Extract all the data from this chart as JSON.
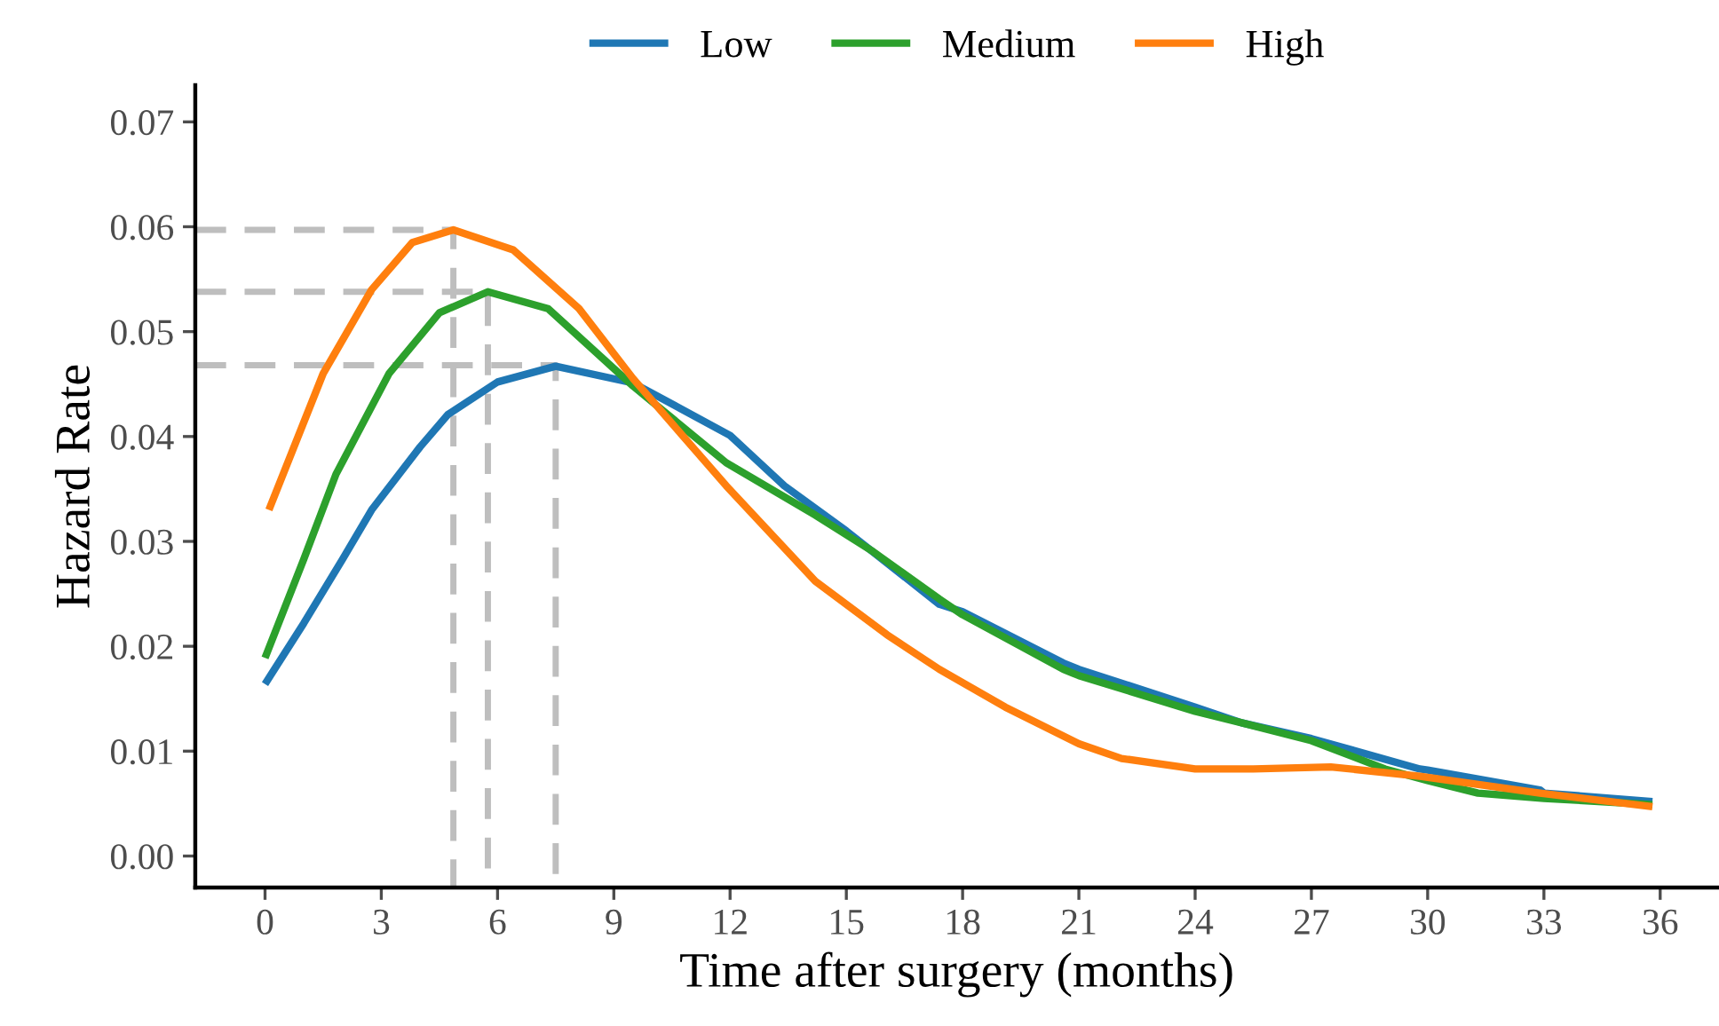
{
  "chart_data": {
    "type": "line",
    "xlabel": "Time after surgery (months)",
    "ylabel": "Hazard Rate",
    "xlim": [
      -1.8,
      37.5
    ],
    "xticks": [
      0,
      3,
      6,
      9,
      12,
      15,
      18,
      21,
      24,
      27,
      30,
      33,
      36
    ],
    "ylim": [
      -0.003,
      0.0735
    ],
    "yticks": [
      {
        "value": 0,
        "label": "0.00"
      },
      {
        "value": 0.01,
        "label": "0.01"
      },
      {
        "value": 0.02,
        "label": "0.02"
      },
      {
        "value": 0.03,
        "label": "0.03"
      },
      {
        "value": 0.04,
        "label": "0.04"
      },
      {
        "value": 0.05,
        "label": "0.05"
      },
      {
        "value": 0.06,
        "label": "0.06"
      },
      {
        "value": 0.07,
        "label": "0.07"
      }
    ],
    "grid": false,
    "legend": "top",
    "marker": "none",
    "series": [
      {
        "name": "Low",
        "color": "#1f77b4",
        "line_style": "solid",
        "x": [
          0,
          1,
          2,
          2.75,
          4,
          4.72,
          6,
          7.5,
          9.5,
          12,
          13.4,
          15,
          17.4,
          18,
          20.6,
          21,
          24,
          25.2,
          27,
          29.8,
          30,
          32.9,
          33,
          35.8
        ],
        "values": [
          0.0164,
          0.0222,
          0.0283,
          0.033,
          0.039,
          0.0421,
          0.0452,
          0.0467,
          0.0451,
          0.0401,
          0.0353,
          0.031,
          0.024,
          0.0233,
          0.0184,
          0.0178,
          0.0142,
          0.0127,
          0.0112,
          0.0083,
          0.0082,
          0.0063,
          0.006,
          0.0052
        ]
      },
      {
        "name": "Medium",
        "color": "#2ca02c",
        "line_style": "solid",
        "x": [
          0,
          1,
          1.83,
          3.2,
          4.5,
          5.75,
          7.3,
          9.5,
          11.9,
          14.2,
          15.7,
          17.4,
          18,
          20.6,
          21,
          24,
          25.2,
          27,
          28.9,
          30,
          31.3,
          33,
          35.8
        ],
        "values": [
          0.0189,
          0.0283,
          0.0364,
          0.046,
          0.0518,
          0.0538,
          0.0522,
          0.0448,
          0.0375,
          0.0325,
          0.029,
          0.0245,
          0.023,
          0.0178,
          0.0172,
          0.0138,
          0.0127,
          0.011,
          0.0083,
          0.0072,
          0.006,
          0.0055,
          0.0049
        ]
      },
      {
        "name": "High",
        "color": "#ff7f0e",
        "line_style": "solid",
        "x": [
          0.1,
          1.5,
          2.75,
          3.8,
          4.86,
          6.4,
          8.1,
          9.5,
          11.9,
          14.2,
          16.05,
          17.4,
          19.1,
          21,
          22.1,
          24,
          25.5,
          27.5,
          29.8,
          32.9,
          35.8
        ],
        "values": [
          0.033,
          0.046,
          0.054,
          0.0585,
          0.0597,
          0.0578,
          0.0522,
          0.0455,
          0.0353,
          0.0262,
          0.0211,
          0.0178,
          0.0142,
          0.0107,
          0.0093,
          0.0083,
          0.0083,
          0.0085,
          0.0076,
          0.006,
          0.0047
        ]
      },
      {
        "color": "#bebebe",
        "line_style": "dashed",
        "x": [
          -1.8,
          4.86,
          4.86
        ],
        "values": [
          0.0597,
          0.0597,
          -0.003
        ]
      },
      {
        "color": "#bebebe",
        "line_style": "dashed",
        "x": [
          -1.8,
          5.75,
          5.75
        ],
        "values": [
          0.0538,
          0.0538,
          -0.003
        ]
      },
      {
        "color": "#bebebe",
        "line_style": "dashed",
        "x": [
          -1.8,
          7.5,
          7.5
        ],
        "values": [
          0.0468,
          0.0468,
          -0.003
        ]
      }
    ]
  }
}
